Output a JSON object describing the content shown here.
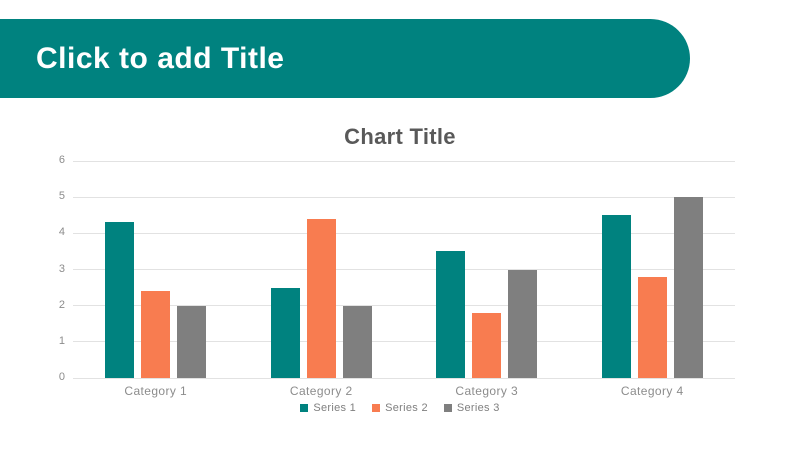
{
  "slide": {
    "title_placeholder": "Click to add Title"
  },
  "colors": {
    "banner": "#00827F",
    "series1": "#00827F",
    "series2": "#F87C50",
    "series3": "#7F7F7F",
    "gridline": "#E2E2E2",
    "chart_title_text": "#595959",
    "axis_text": "#8C8C8C",
    "legend_text": "#7F7F7F"
  },
  "chart_data": {
    "type": "bar",
    "title": "Chart Title",
    "categories": [
      "Category 1",
      "Category 2",
      "Category 3",
      "Category 4"
    ],
    "series": [
      {
        "name": "Series 1",
        "color": "#00827F",
        "values": [
          4.3,
          2.5,
          3.5,
          4.5
        ]
      },
      {
        "name": "Series 2",
        "color": "#F87C50",
        "values": [
          2.4,
          4.4,
          1.8,
          2.8
        ]
      },
      {
        "name": "Series 3",
        "color": "#7F7F7F",
        "values": [
          2.0,
          2.0,
          3.0,
          5.0
        ]
      }
    ],
    "y_ticks": [
      0,
      1,
      2,
      3,
      4,
      5,
      6
    ],
    "ylim": [
      0,
      6
    ],
    "grid": true,
    "legend_position": "bottom"
  }
}
